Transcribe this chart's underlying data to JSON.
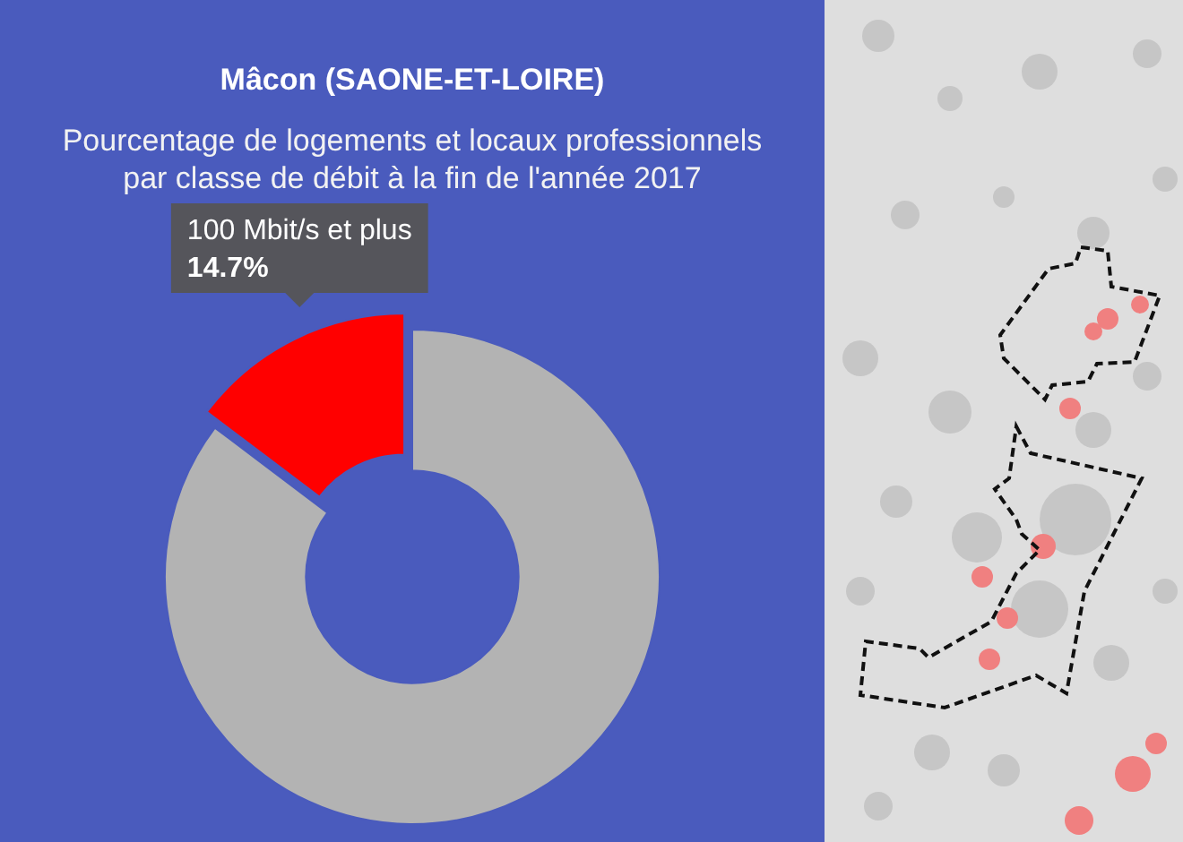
{
  "chart_data": {
    "type": "donut",
    "title": "Mâcon (SAONE-ET-LOIRE)",
    "subtitle": "Pourcentage de logements et locaux professionnels par classe de débit à la fin de l'année 2017",
    "categories": [
      null,
      "100 Mbit/s et plus"
    ],
    "values": [
      85.3,
      14.7
    ],
    "colors": [
      "#b3b3b3",
      "#ff0000"
    ],
    "value_labels": [
      null,
      "14.7%"
    ]
  }
}
